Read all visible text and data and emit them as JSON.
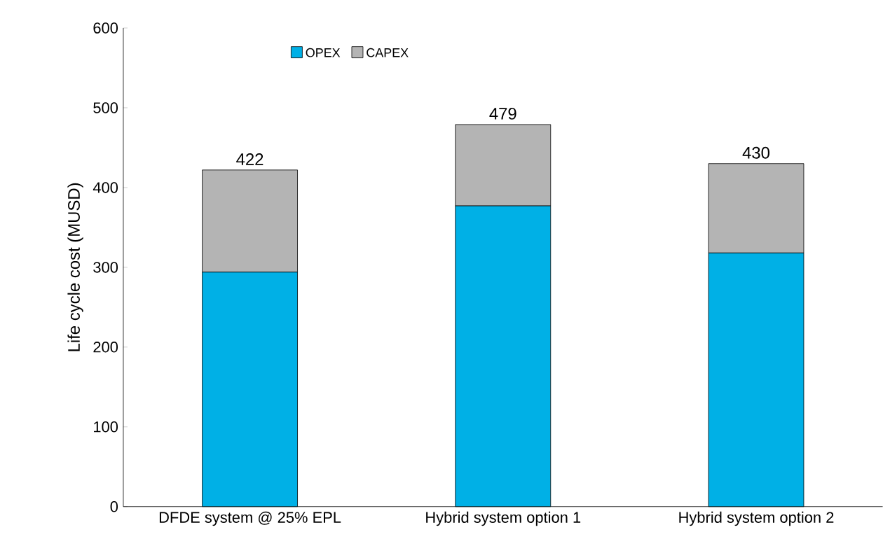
{
  "chart_data": {
    "type": "bar",
    "stacked": true,
    "ylabel": "Life cycle cost (MUSD)",
    "categories": [
      "DFDE system @ 25% EPL",
      "Hybrid system option 1",
      "Hybrid system option 2"
    ],
    "series": [
      {
        "name": "OPEX",
        "color": "#00b0e6",
        "values": [
          294,
          377,
          318
        ]
      },
      {
        "name": "CAPEX",
        "color": "#b4b4b4",
        "values": [
          128,
          102,
          112
        ]
      }
    ],
    "totals": [
      "422",
      "479",
      "430"
    ],
    "ylim": [
      0,
      600
    ],
    "yticks": [
      0,
      100,
      200,
      300,
      400,
      500,
      600
    ],
    "legend": "top",
    "grid": false
  }
}
